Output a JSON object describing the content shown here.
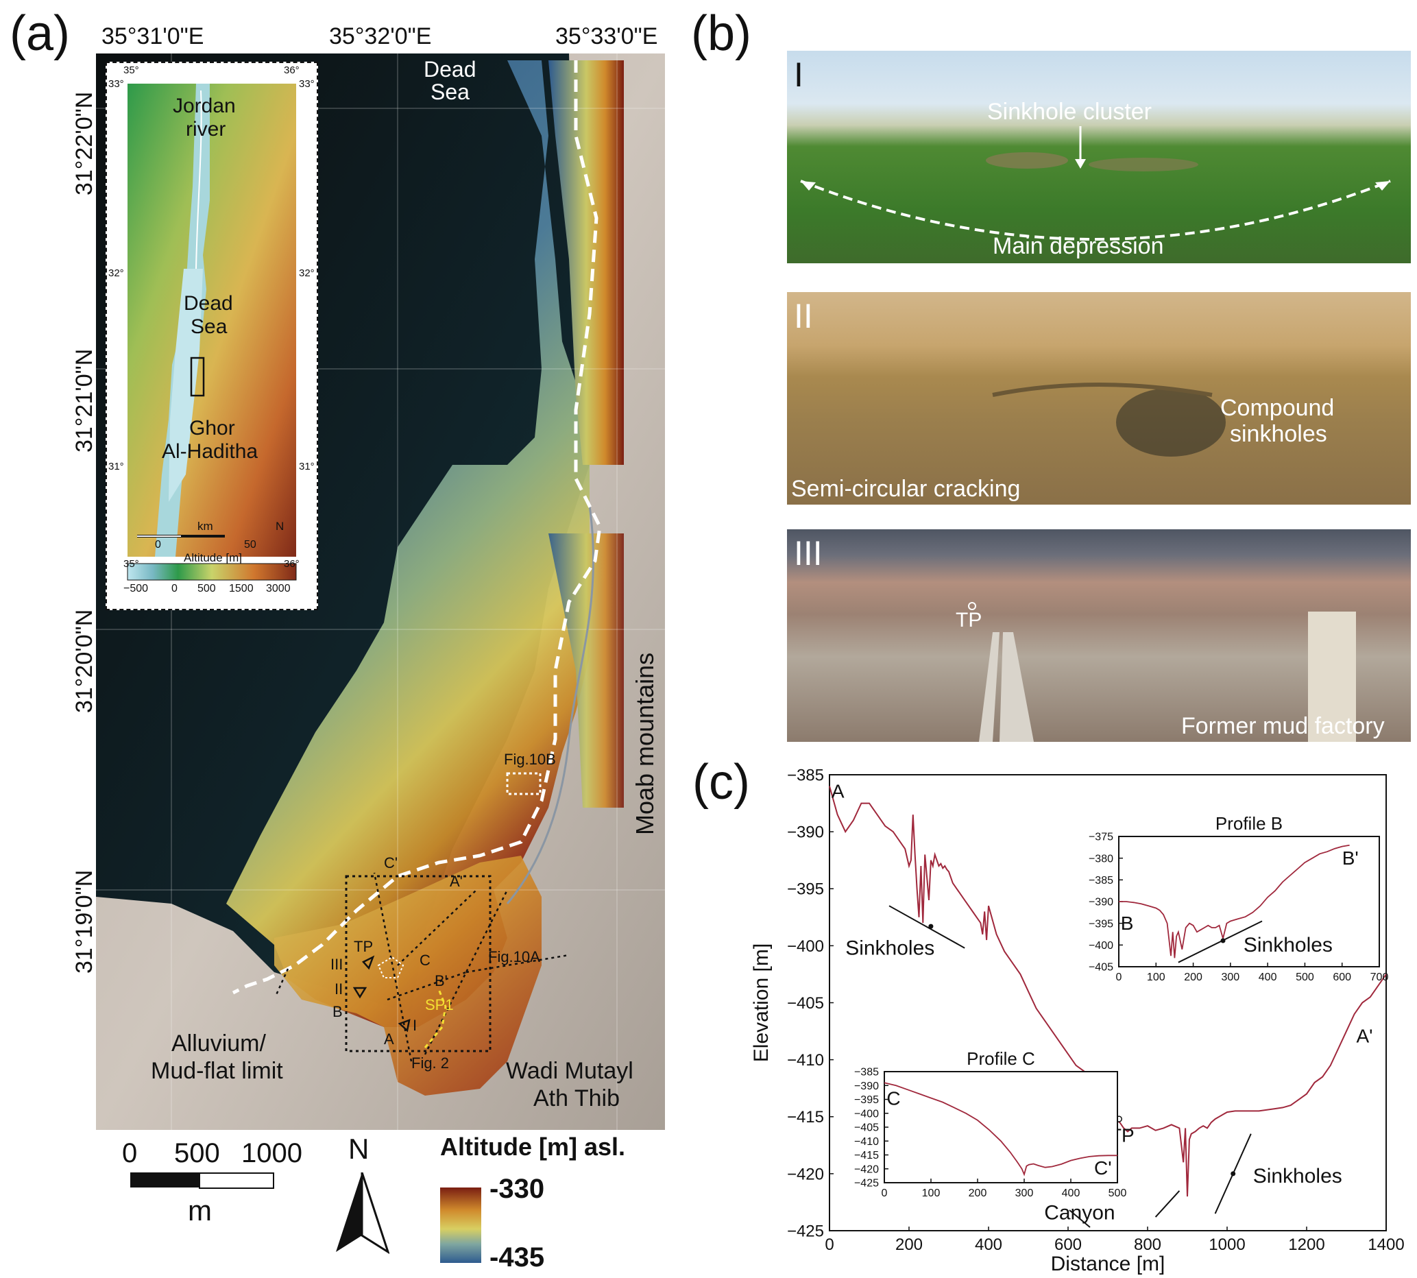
{
  "panel_a": {
    "letter": "(a)",
    "lon_labels": [
      "35°31'0\"E",
      "35°32'0\"E",
      "35°33'0\"E"
    ],
    "lat_labels": [
      "31°22'0\"N",
      "31°21'0\"N",
      "31°20'0\"N",
      "31°19'0\"N"
    ],
    "dead_sea_label": [
      "Dead",
      "Sea"
    ],
    "moab_label": "Moab mountains",
    "alluvium_label": [
      "Alluvium/",
      "Mud-flat limit"
    ],
    "wadi_label": [
      "Wadi Mutayl",
      "Ath Thib"
    ],
    "fig10b_label": "Fig.10B",
    "fig10a_label": "Fig.10A",
    "fig2_label": "Fig. 2",
    "sp1_label": "SP1",
    "profile_points": {
      "A": "A",
      "A_prime": "A'",
      "B": "B",
      "B_prime": "B'",
      "C": "C",
      "C_prime": "C'",
      "TP": "TP"
    },
    "photo_points": {
      "I": "I",
      "II": "II",
      "III": "III"
    },
    "inset": {
      "lon_top": [
        "35°",
        "36°"
      ],
      "lon_bottom": [
        "35°",
        "36°"
      ],
      "lat_left": [
        "33°",
        "32°",
        "31°"
      ],
      "lat_right": [
        "33°",
        "32°",
        "31°"
      ],
      "jordan_river": [
        "Jordan",
        "river"
      ],
      "dead_sea": [
        "Dead",
        "Sea"
      ],
      "ghor": [
        "Ghor",
        "Al-Haditha"
      ],
      "km_label": "km",
      "scale_ticks": [
        "0",
        "50"
      ],
      "north": "N",
      "legend_title": "Altitude [m]",
      "legend_ticks": [
        "−500",
        "0",
        "500",
        "1500",
        "3000"
      ]
    },
    "scalebar": {
      "ticks": [
        "0",
        "500",
        "1000"
      ],
      "unit": "m"
    },
    "north_arrow": "N",
    "altitude_legend": {
      "title": "Altitude [m] asl.",
      "max": "-330",
      "min": "-435"
    }
  },
  "panel_b": {
    "letter": "(b)",
    "photos": [
      {
        "roman": "I",
        "labels": [
          "Sinkhole cluster",
          "Main depression"
        ]
      },
      {
        "roman": "II",
        "labels": [
          "Compound",
          "sinkholes",
          "Semi-circular cracking"
        ]
      },
      {
        "roman": "III",
        "labels": [
          "TP",
          "Former mud factory"
        ]
      }
    ]
  },
  "panel_c": {
    "letter": "(c)",
    "annotations": {
      "A": "A",
      "A_prime": "A'",
      "TP": "TP",
      "sinkholes_1": "Sinkholes",
      "sinkholes_2": "Sinkholes",
      "canyon": "Canyon"
    },
    "chart_data": [
      {
        "type": "line",
        "title": "",
        "xlabel": "Distance [m]",
        "ylabel": "Elevation [m]",
        "xlim": [
          0,
          1400
        ],
        "ylim": [
          -425,
          -385
        ],
        "xticks": [
          0,
          200,
          400,
          600,
          800,
          1000,
          1200,
          1400
        ],
        "yticks": [
          -385,
          -390,
          -395,
          -400,
          -405,
          -410,
          -415,
          -420,
          -425
        ],
        "series": [
          {
            "color": "#a0283c",
            "x": [
              0,
              20,
              40,
              60,
              80,
              100,
              120,
              140,
              160,
              180,
              190,
              200,
              205,
              210,
              215,
              220,
              225,
              230,
              235,
              240,
              245,
              250,
              255,
              260,
              265,
              270,
              275,
              280,
              285,
              290,
              295,
              300,
              305,
              310,
              320,
              330,
              340,
              350,
              360,
              370,
              380,
              385,
              390,
              395,
              400,
              420,
              440,
              460,
              480,
              500,
              520,
              540,
              560,
              580,
              600,
              620,
              640,
              660,
              680,
              700,
              710,
              720,
              730,
              740,
              750,
              760,
              780,
              800,
              820,
              840,
              860,
              880,
              890,
              895,
              900,
              905,
              910,
              920,
              930,
              940,
              950,
              960,
              970,
              980,
              990,
              1000,
              1020,
              1040,
              1060,
              1080,
              1100,
              1120,
              1140,
              1160,
              1180,
              1200,
              1220,
              1240,
              1260,
              1280,
              1300,
              1320,
              1340,
              1360,
              1380,
              1400
            ],
            "y": [
              -386,
              -388.5,
              -390,
              -389,
              -387.5,
              -387.5,
              -388.5,
              -389.5,
              -390,
              -391,
              -391.5,
              -393,
              -392.5,
              -388.5,
              -392,
              -395,
              -397.5,
              -393,
              -398,
              -392,
              -394,
              -396,
              -392.5,
              -393,
              -392,
              -392.5,
              -393,
              -392.8,
              -393.2,
              -393,
              -393.3,
              -393.5,
              -394,
              -394.5,
              -395,
              -395.5,
              -396,
              -396.5,
              -397,
              -397.5,
              -398,
              -399,
              -397,
              -399.5,
              -396.5,
              -399,
              -400.5,
              -401.5,
              -402.5,
              -404,
              -405.5,
              -406.5,
              -407.5,
              -408.5,
              -409.5,
              -410.5,
              -411,
              -412.5,
              -413.5,
              -414.5,
              -415,
              -415.3,
              -415.5,
              -416,
              -416.3,
              -416,
              -416,
              -415.8,
              -416.2,
              -416,
              -415.7,
              -416,
              -419,
              -416,
              -422,
              -417,
              -416.5,
              -416.3,
              -416,
              -415.8,
              -416,
              -415.5,
              -415.2,
              -415,
              -414.8,
              -414.6,
              -414.5,
              -414.5,
              -414.5,
              -414.5,
              -414.4,
              -414.3,
              -414.2,
              -414,
              -413.5,
              -413,
              -412,
              -411.5,
              -410.5,
              -409,
              -407.5,
              -406,
              -405,
              -404.5,
              -403.5,
              -402.5
            ]
          }
        ]
      },
      {
        "type": "line",
        "title": "Profile B",
        "xlim": [
          0,
          700
        ],
        "ylim": [
          -405,
          -375
        ],
        "xticks": [
          0,
          100,
          200,
          300,
          400,
          500,
          600,
          700
        ],
        "yticks": [
          -375,
          -380,
          -385,
          -390,
          -395,
          -400,
          -405
        ],
        "start_label": "B",
        "end_label": "B'",
        "annotation": "Sinkholes",
        "series": [
          {
            "color": "#a0283c",
            "x": [
              0,
              20,
              40,
              60,
              80,
              100,
              110,
              120,
              130,
              140,
              145,
              150,
              155,
              160,
              170,
              180,
              190,
              200,
              210,
              220,
              230,
              240,
              250,
              260,
              270,
              280,
              290,
              300,
              320,
              340,
              360,
              380,
              400,
              420,
              440,
              460,
              480,
              500,
              520,
              540,
              560,
              580,
              600,
              620
            ],
            "y": [
              -390,
              -390,
              -390.2,
              -390.5,
              -391,
              -391.5,
              -392,
              -393,
              -395,
              -402.5,
              -397,
              -403,
              -398,
              -397,
              -401,
              -396,
              -395,
              -395.5,
              -397,
              -396.5,
              -396,
              -395.5,
              -396,
              -396,
              -395.5,
              -398.5,
              -395,
              -394.5,
              -394,
              -393.5,
              -392.5,
              -391,
              -389,
              -387.5,
              -385.5,
              -384,
              -382.5,
              -381,
              -380,
              -379,
              -378.5,
              -377.8,
              -377.3,
              -377
            ]
          }
        ]
      },
      {
        "type": "line",
        "title": "Profile C",
        "xlim": [
          0,
          500
        ],
        "ylim": [
          -425,
          -385
        ],
        "xticks": [
          0,
          100,
          200,
          300,
          400,
          500
        ],
        "yticks": [
          -385,
          -390,
          -395,
          -400,
          -405,
          -410,
          -415,
          -420,
          -425
        ],
        "start_label": "C",
        "end_label": "C'",
        "series": [
          {
            "color": "#a0283c",
            "x": [
              0,
              25,
              50,
              75,
              100,
              125,
              150,
              175,
              200,
              225,
              250,
              270,
              285,
              295,
              300,
              305,
              310,
              320,
              330,
              345,
              360,
              380,
              400,
              420,
              440,
              460,
              480,
              500
            ],
            "y": [
              -389,
              -390,
              -391.5,
              -393,
              -394.5,
              -396,
              -398,
              -400,
              -402.5,
              -406,
              -410,
              -414,
              -417.5,
              -420,
              -422,
              -419,
              -418.5,
              -418.2,
              -418.8,
              -419.5,
              -419.2,
              -418.3,
              -417,
              -416.2,
              -415.6,
              -415.3,
              -415.2,
              -415.2
            ]
          }
        ]
      }
    ]
  }
}
